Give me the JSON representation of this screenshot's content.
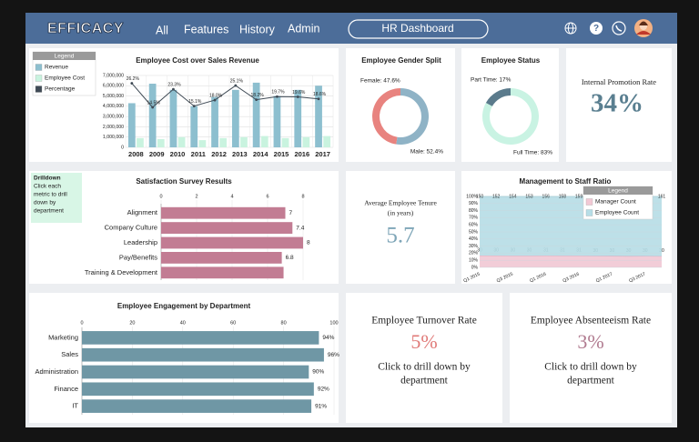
{
  "nav": {
    "logo": "EFFICACY",
    "links": [
      "All",
      "Features",
      "History",
      "Admin"
    ],
    "dashboard": "HR Dashboard"
  },
  "drilldown": {
    "title": "Drilldown",
    "lines": [
      "Click each",
      "metric to drill",
      "down by",
      "department"
    ]
  },
  "kpis": [
    {
      "title": [
        "Internal Promotion Rate"
      ],
      "value": "34%"
    },
    {
      "title": [
        "Average Employee Tenure",
        "(in years)"
      ],
      "value": "5.7"
    },
    {
      "title": [
        "Employee Turnover Rate"
      ],
      "value": "5%",
      "note": [
        "Click to drill down by",
        "department"
      ]
    },
    {
      "title": [
        "Employee Absenteeism Rate"
      ],
      "value": "3%",
      "note": [
        "Click to drill down by",
        "department"
      ]
    }
  ],
  "chart_data": [
    {
      "type": "bar",
      "title": "Employee Cost over Sales Revenue",
      "legend_title": "Legend",
      "legend": "left",
      "categories": [
        "2008",
        "2009",
        "2010",
        "2011",
        "2012",
        "2013",
        "2014",
        "2015",
        "2016",
        "2017"
      ],
      "series": [
        {
          "name": "Revenue",
          "color": "#8dbfcf",
          "values": [
            4300000,
            6200000,
            5600000,
            4000000,
            4900000,
            5600000,
            6300000,
            5000000,
            5600000,
            6000000
          ]
        },
        {
          "name": "Employee Cost",
          "color": "#c9f3df",
          "values": [
            900000,
            800000,
            1000000,
            700000,
            900000,
            1000000,
            1100000,
            900000,
            1000000,
            1100000
          ]
        },
        {
          "name": "Percentage",
          "color": "#3f4a55",
          "type": "line",
          "axis": "y2",
          "values": [
            26.2,
            14.5,
            23.3,
            15.1,
            18.0,
            25.1,
            18.2,
            19.7,
            19.6,
            18.6
          ],
          "value_labels": [
            "26.2%",
            "14.5%",
            "23.3%",
            "15.1%",
            "18.0%",
            "25.1%",
            "18.2%",
            "19.7%",
            "19.6%",
            "18.6%"
          ]
        }
      ],
      "ylim": [
        0,
        7000000
      ],
      "yticks": [
        0,
        {
          "value": 1000000,
          "label": "1,000,000"
        },
        {
          "value": 2000000,
          "label": "2,000,000"
        },
        {
          "value": 3000000,
          "label": "3,000,000"
        },
        {
          "value": 4000000,
          "label": "4,000,000"
        },
        {
          "value": 5000000,
          "label": "5,000,000"
        },
        {
          "value": 6000000,
          "label": "6,000,000"
        },
        {
          "value": 7000000,
          "label": "7,000,000"
        }
      ],
      "y2lim": [
        -5,
        30
      ],
      "grid": true
    },
    {
      "type": "donut",
      "title": "Employee Gender Split",
      "values": [
        47.6,
        52.4
      ],
      "value_labels": [
        "Female: 47.6%",
        "Male: 52.4%"
      ],
      "colors": [
        "#e8837f",
        "#8fb3c6"
      ]
    },
    {
      "type": "donut",
      "title": "Employee Status",
      "values": [
        17,
        83
      ],
      "value_labels": [
        "Part Time: 17%",
        "Full Time: 83%"
      ],
      "colors": [
        "#5b7b8c",
        "#c9f3e3"
      ]
    },
    {
      "type": "hbar",
      "title": "Satisfaction Survey Results",
      "categories": [
        "Alignment",
        "Company Culture",
        "Leadership",
        "Pay/Benefits",
        "Training & Development"
      ],
      "values": [
        7,
        7.4,
        8,
        6.8,
        6.9
      ],
      "value_labels": [
        "7",
        "7.4",
        "8",
        "6.8",
        null
      ],
      "color": "#c27c93",
      "xlim": [
        0,
        8
      ],
      "xticks": [
        0,
        2,
        4,
        6,
        8
      ],
      "grid": true
    },
    {
      "type": "area",
      "title": "Management to Staff Ratio",
      "legend_title": "Legend",
      "legend": "upper right",
      "stacked": "percent",
      "categories": [
        "Q1 2015",
        null,
        "Q3 2015",
        null,
        "Q1 2016",
        null,
        "Q3 2016",
        null,
        "Q1 2017",
        null,
        "Q3 2017",
        null
      ],
      "series": [
        {
          "name": "Manager Count",
          "color": "#f2c9d5",
          "values": [
            30,
            30,
            30,
            30,
            31,
            31,
            31,
            30,
            30,
            30,
            30,
            30
          ]
        },
        {
          "name": "Employee Count",
          "color": "#b7dee7",
          "values": [
            150,
            152,
            154,
            153,
            156,
            158,
            159,
            157,
            158,
            160,
            159,
            161
          ]
        }
      ],
      "ylim": [
        0,
        100
      ],
      "yticks": [
        {
          "value": 0,
          "label": "0%"
        },
        {
          "value": 10,
          "label": "10%"
        },
        {
          "value": 20,
          "label": "20%"
        },
        {
          "value": 30,
          "label": "30%"
        },
        {
          "value": 40,
          "label": "40%"
        },
        {
          "value": 50,
          "label": "50%"
        },
        {
          "value": 60,
          "label": "60%"
        },
        {
          "value": 70,
          "label": "70%"
        },
        {
          "value": 80,
          "label": "80%"
        },
        {
          "value": 90,
          "label": "90%"
        },
        {
          "value": 100,
          "label": "100%"
        }
      ],
      "grid": true
    },
    {
      "type": "hbar",
      "title": "Employee Engagement by Department",
      "categories": [
        "Marketing",
        "Sales",
        "Administration",
        "Finance",
        "IT"
      ],
      "values": [
        94,
        96,
        90,
        92,
        91
      ],
      "value_labels": [
        "94%",
        "96%",
        "90%",
        "92%",
        "91%"
      ],
      "color": "#6f97a5",
      "xlim": [
        0,
        100
      ],
      "xticks": [
        0,
        20,
        40,
        60,
        80,
        100
      ],
      "grid": true
    }
  ]
}
